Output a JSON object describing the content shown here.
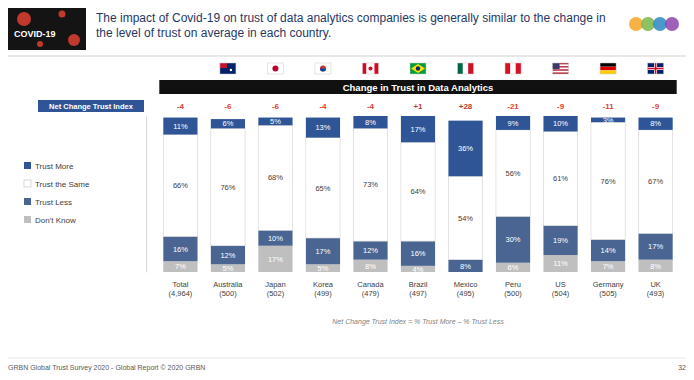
{
  "chart_data": {
    "type": "bar",
    "stacked": true,
    "data_labels": true,
    "tick_labels": "x",
    "legend": "left",
    "title": "The impact of Covid-19 on trust of data analytics companies is generally similar to the change in the level of trust on average in each country.",
    "subtitle": "Change in Trust in Data Analytics",
    "badge": "COVID-19",
    "categories": [
      "Total (4,964)",
      "Australia (500)",
      "Japan (502)",
      "Korea (499)",
      "Canada (479)",
      "Brazil (497)",
      "Mexico (495)",
      "Peru (500)",
      "US (504)",
      "Germany (505)",
      "UK (493)"
    ],
    "series": [
      {
        "name": "Trust More",
        "color": "#2f5597",
        "values": [
          11,
          6,
          5,
          13,
          8,
          17,
          36,
          9,
          10,
          3,
          8
        ],
        "value_labels": [
          "11%",
          "6%",
          "5%",
          "13%",
          "8%",
          "17%",
          "36%",
          "9%",
          "10%",
          "3%",
          "8%"
        ]
      },
      {
        "name": "Trust the Same",
        "color": "#ffffff",
        "values": [
          66,
          76,
          68,
          65,
          73,
          64,
          54,
          56,
          61,
          76,
          67
        ],
        "value_labels": [
          "66%",
          "76%",
          "68%",
          "65%",
          "73%",
          "64%",
          "54%",
          "56%",
          "61%",
          "76%",
          "67%"
        ]
      },
      {
        "name": "Trust Less",
        "color": "#4a6592",
        "values": [
          16,
          12,
          10,
          17,
          12,
          16,
          8,
          30,
          19,
          14,
          17
        ],
        "value_labels": [
          "16%",
          "12%",
          "10%",
          "17%",
          "12%",
          "16%",
          "8%",
          "30%",
          "19%",
          "14%",
          "17%"
        ]
      },
      {
        "name": "Don't Know",
        "color": "#bfbfbf",
        "values": [
          7,
          5,
          17,
          5,
          8,
          4,
          null,
          6,
          11,
          7,
          8
        ],
        "value_labels": [
          "7%",
          "5%",
          "17%",
          "5%",
          "8%",
          "4%",
          null,
          "6%",
          "11%",
          "7%",
          "8%"
        ]
      }
    ],
    "ylim": [
      0,
      101
    ],
    "net_change": {
      "name": "Net Change Trust Index",
      "values": [
        -4,
        -6,
        -6,
        -4,
        -4,
        1,
        28,
        -21,
        -9,
        -11,
        -9
      ],
      "value_labels": [
        "-4",
        "-6",
        "-6",
        "-4",
        "-4",
        "+1",
        "+28",
        "-21",
        "-9",
        "-11",
        "-9"
      ]
    },
    "footnote": "Net Change Trust Index = % Trust More – % Trust Less",
    "source": "GRBN Global Trust Survey 2020 - Global Report © 2020 GRBN",
    "page": "32"
  }
}
